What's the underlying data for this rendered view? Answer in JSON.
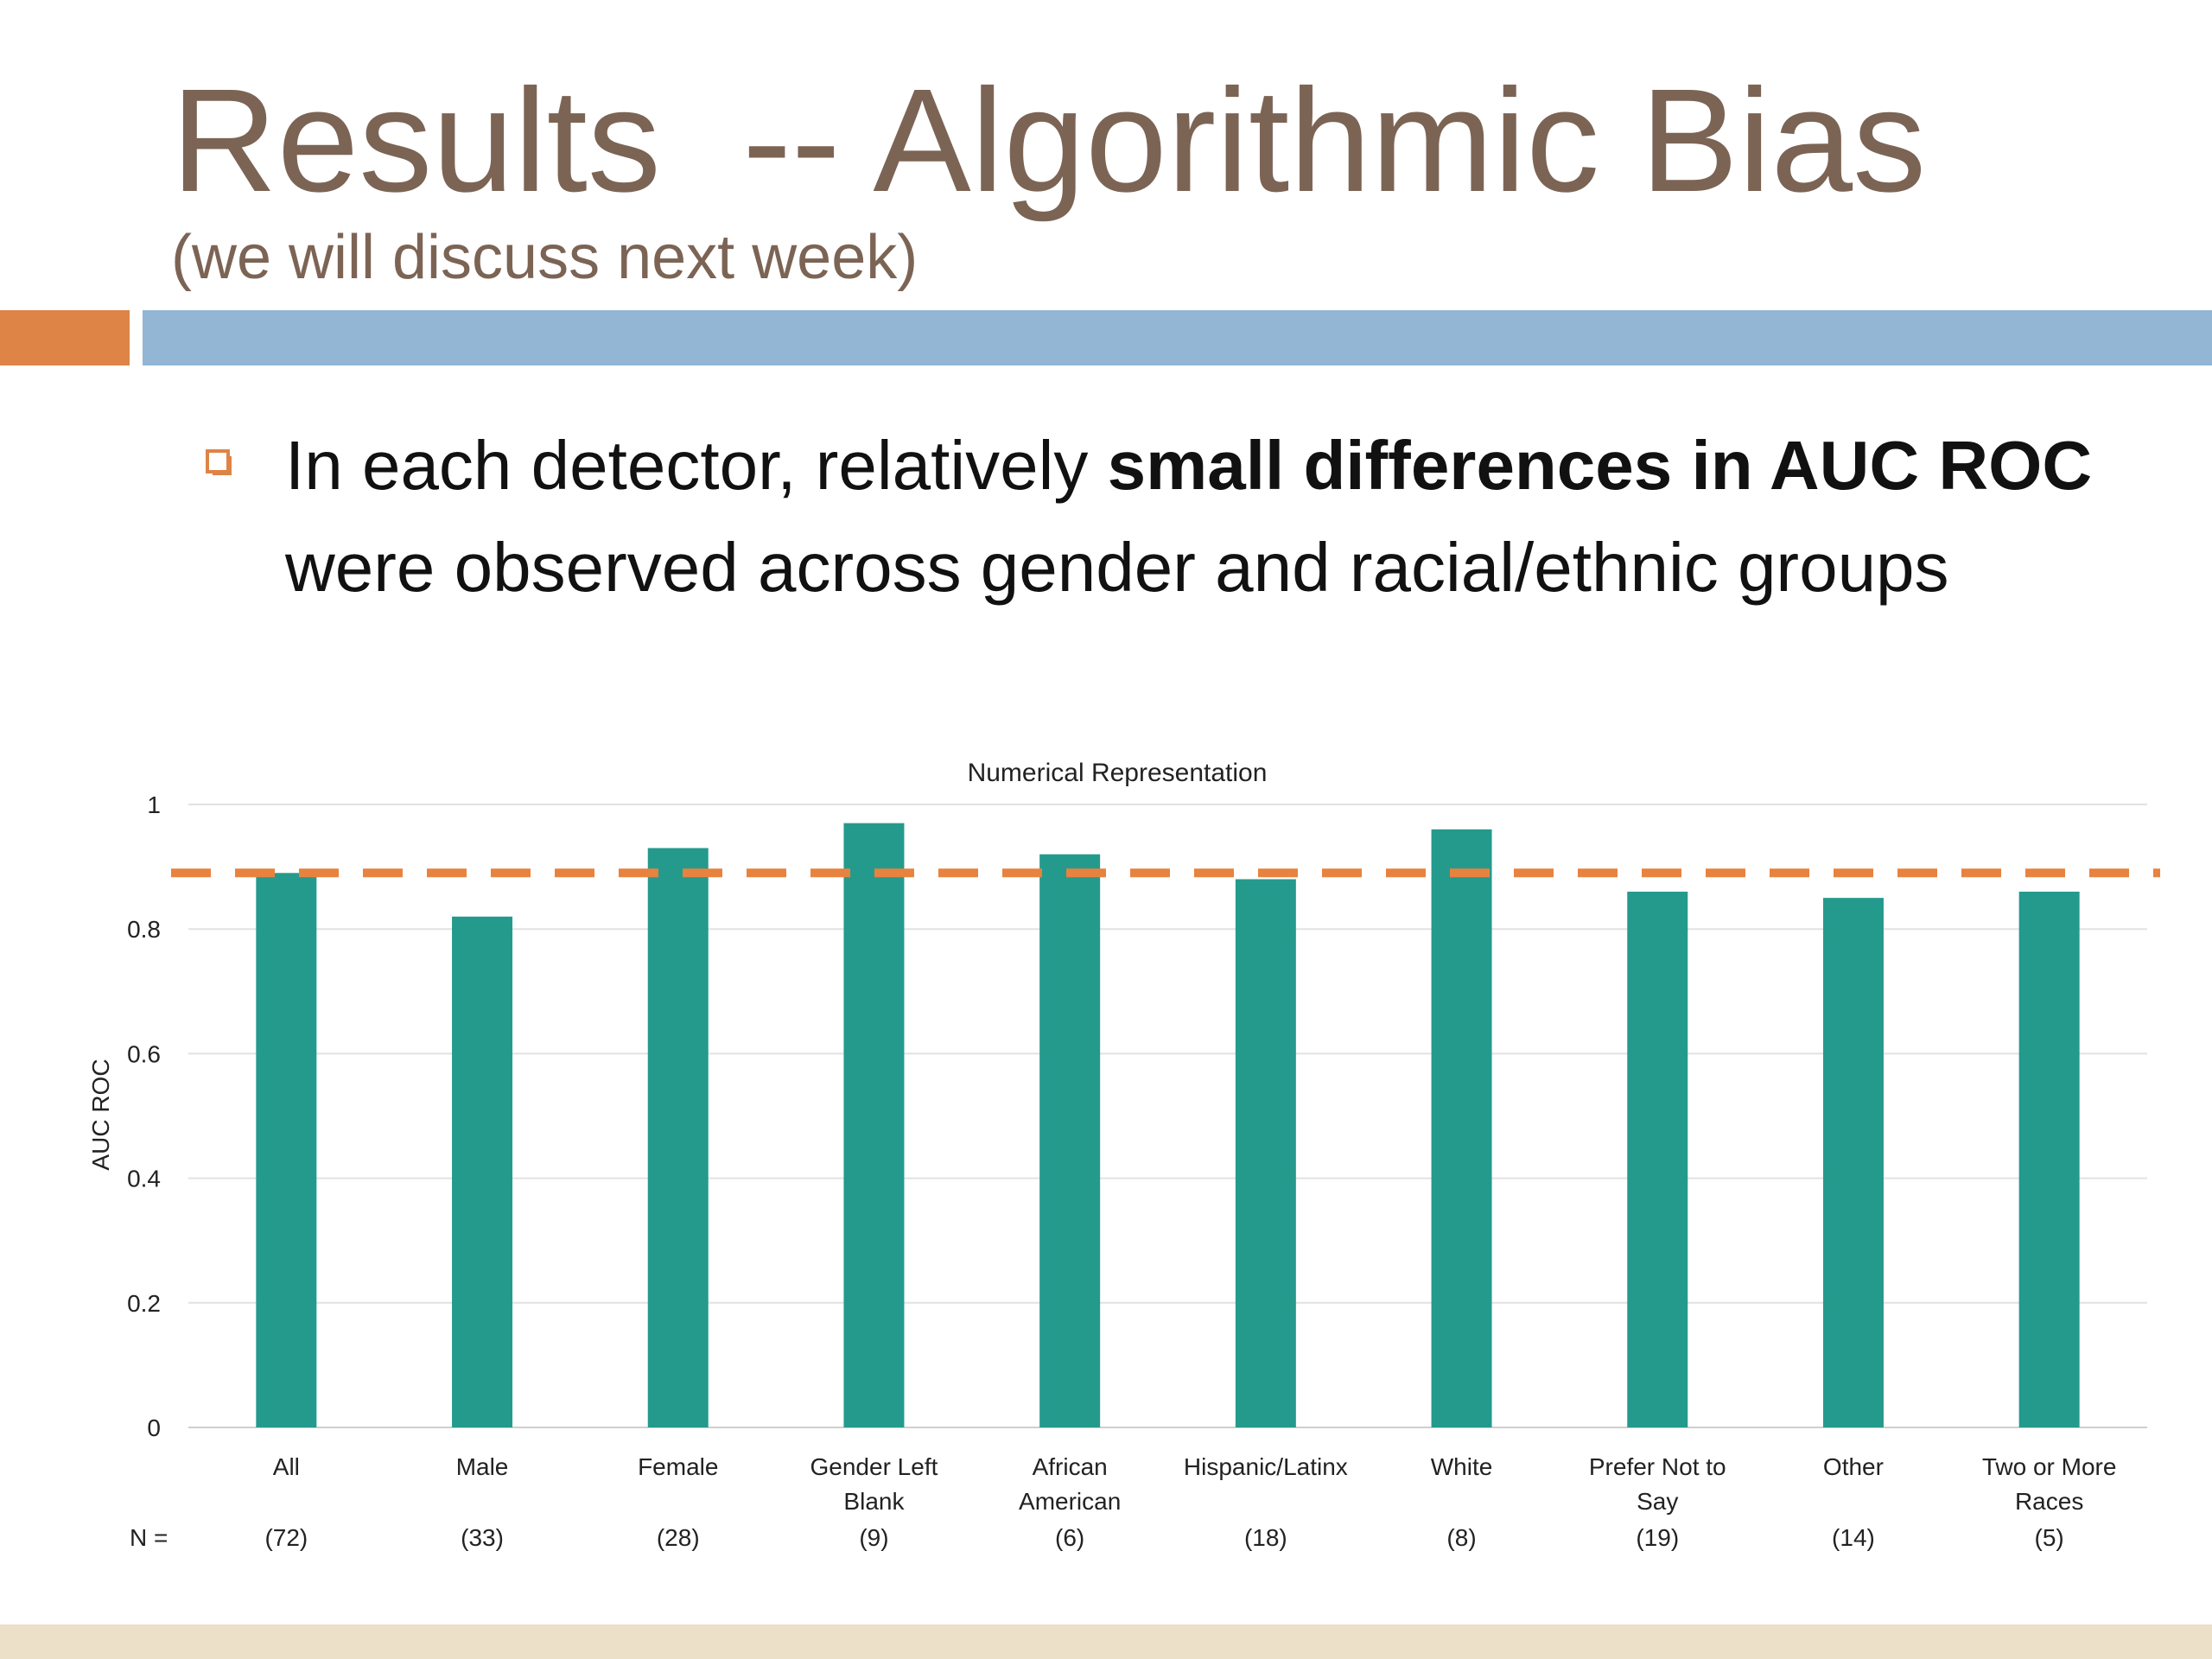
{
  "slide": {
    "title": "Results  -- Algorithmic Bias",
    "subtitle": "(we will discuss next week)",
    "bullet": {
      "part1": "In each detector, relatively ",
      "bold1": "small differences in AUC ROC",
      "part2": " were observed across gender and racial/ethnic groups"
    },
    "accent_colors": {
      "title": "#7c6455",
      "orange": "#de8446",
      "blue": "#93b6d4",
      "footer": "#ece0c9"
    },
    "bullet_icon": "hollow-square-icon"
  },
  "chart_data": {
    "type": "bar",
    "title": "Numerical Representation",
    "ylabel": "AUC ROC",
    "xlabel": "",
    "ylim": [
      0,
      1
    ],
    "yticks": [
      0,
      0.2,
      0.4,
      0.6,
      0.8,
      1
    ],
    "ytick_labels": [
      "0",
      "0.2",
      "0.4",
      "0.6",
      "0.8",
      "1"
    ],
    "grid": true,
    "categories": [
      [
        "All"
      ],
      [
        "Male"
      ],
      [
        "Female"
      ],
      [
        "Gender Left",
        "Blank"
      ],
      [
        "African",
        "American"
      ],
      [
        "Hispanic/Latinx"
      ],
      [
        "White"
      ],
      [
        "Prefer Not to",
        "Say"
      ],
      [
        "Other"
      ],
      [
        "Two or More",
        "Races"
      ]
    ],
    "values": [
      0.89,
      0.82,
      0.93,
      0.97,
      0.92,
      0.88,
      0.96,
      0.86,
      0.85,
      0.86
    ],
    "n_label": "N =",
    "n_values": [
      "(72)",
      "(33)",
      "(28)",
      "(9)",
      "(6)",
      "(18)",
      "(8)",
      "(19)",
      "(14)",
      "(5)"
    ],
    "reference_line": 0.89,
    "bar_color": "#249a8d",
    "reference_color": "#e8823f"
  }
}
